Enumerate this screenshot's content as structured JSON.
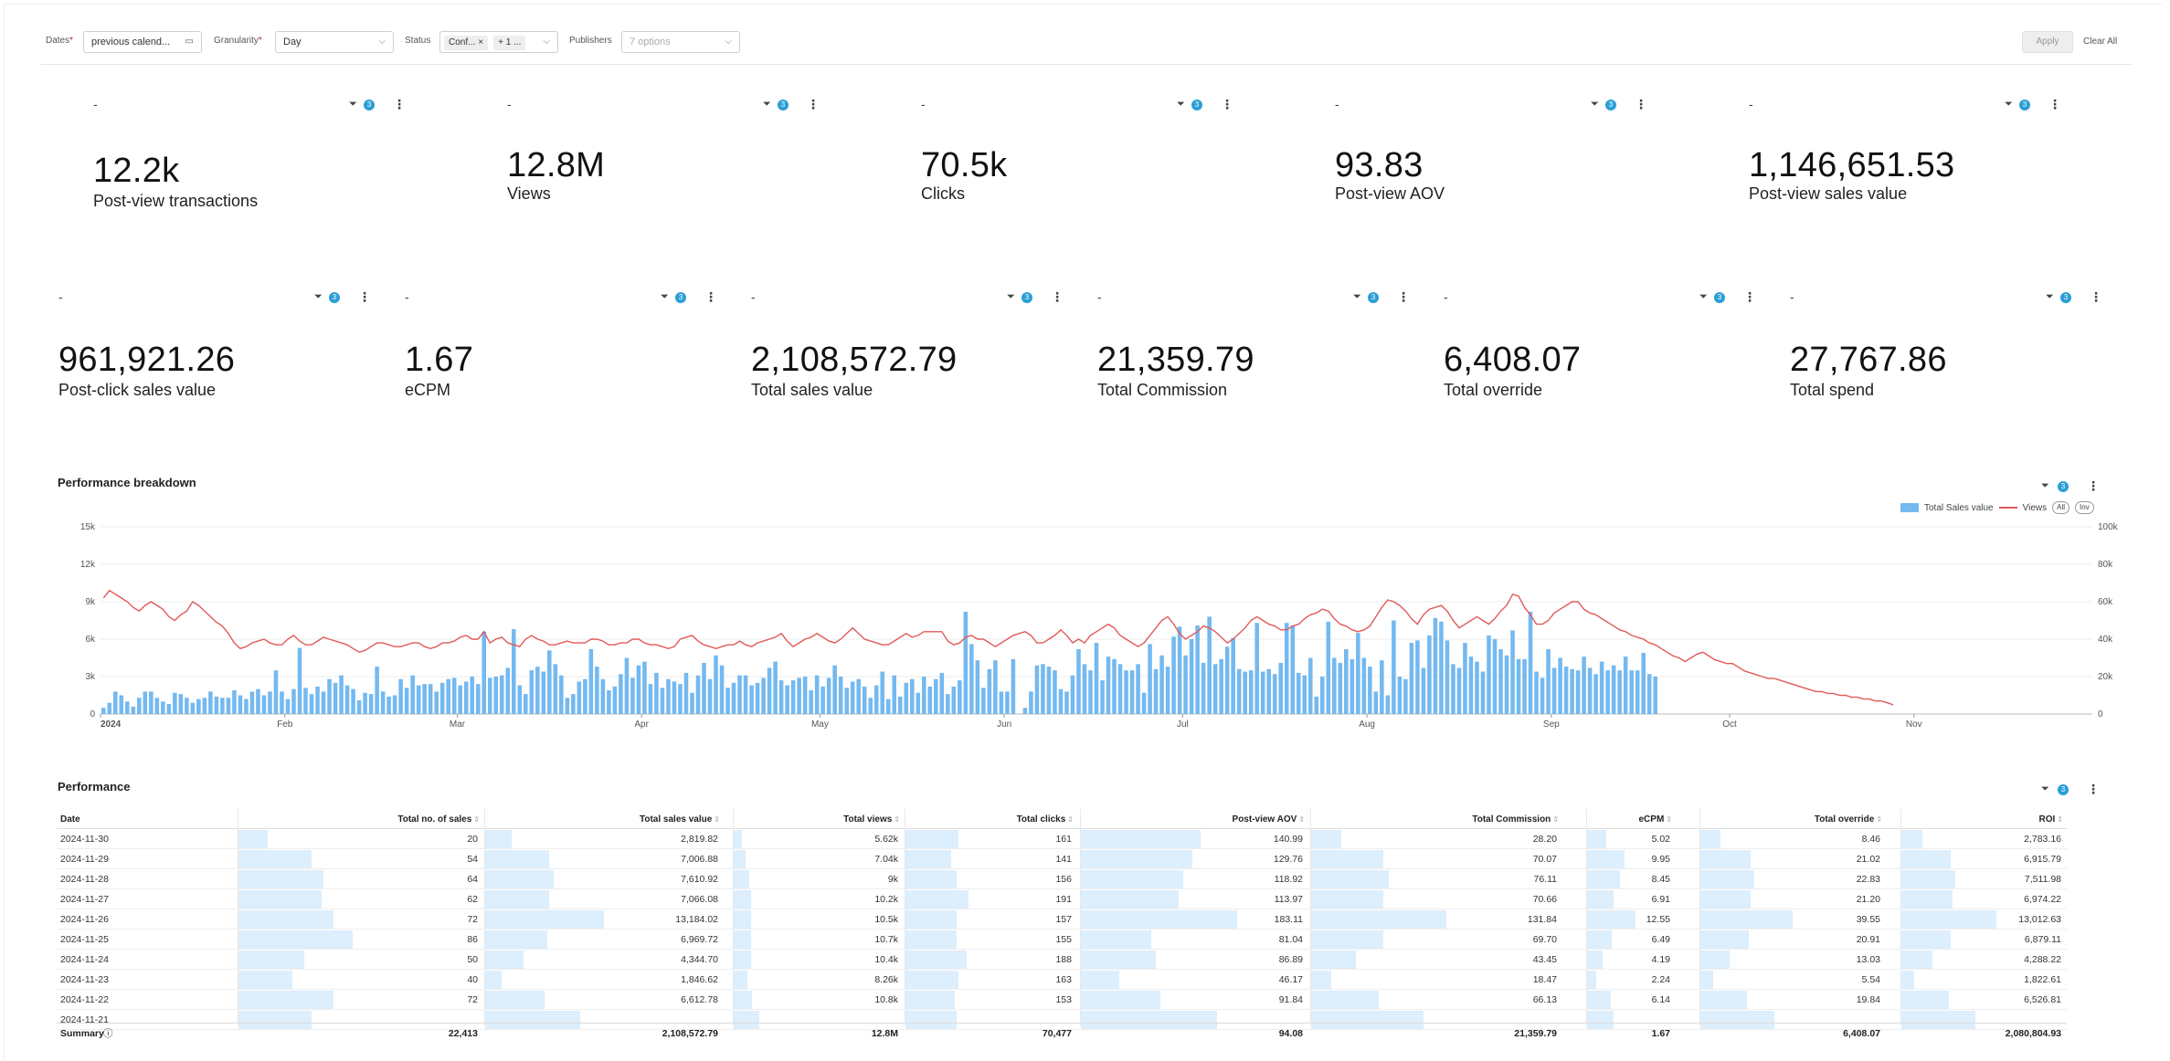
{
  "filters": {
    "dates": {
      "label": "Dates",
      "value": "previous calend..."
    },
    "granularity": {
      "label": "Granularity",
      "value": "Day"
    },
    "status": {
      "label": "Status",
      "chip": "Conf...",
      "more": "+ 1 ..."
    },
    "publishers": {
      "label": "Publishers",
      "placeholder": "7 options"
    },
    "apply": "Apply",
    "clear": "Clear All"
  },
  "kpis_row1": [
    {
      "value": "12.2k",
      "label": "Post-view transactions"
    },
    {
      "value": "12.8M",
      "label": "Views"
    },
    {
      "value": "70.5k",
      "label": "Clicks"
    },
    {
      "value": "93.83",
      "label": "Post-view AOV"
    },
    {
      "value": "1,146,651.53",
      "label": "Post-view sales value"
    }
  ],
  "kpis_row2": [
    {
      "value": "961,921.26",
      "label": "Post-click sales value"
    },
    {
      "value": "1.67",
      "label": "eCPM"
    },
    {
      "value": "2,108,572.79",
      "label": "Total sales value"
    },
    {
      "value": "21,359.79",
      "label": "Total Commission"
    },
    {
      "value": "6,408.07",
      "label": "Total override"
    },
    {
      "value": "27,767.86",
      "label": "Total spend"
    }
  ],
  "kpi_dash": "-",
  "badge_count": "3",
  "more_glyph": "⋮",
  "filter_glyph": "⏷",
  "chart_section": {
    "title": "Performance breakdown"
  },
  "chart_data": {
    "type": "bar",
    "legend": {
      "bars": "Total Sales value",
      "line": "Views",
      "pill_all": "All",
      "pill_inv": "Inv"
    },
    "y_left_ticks": [
      "0",
      "3k",
      "6k",
      "9k",
      "12k",
      "15k"
    ],
    "y_left_lim": [
      0,
      15000
    ],
    "y_right_ticks": [
      "0",
      "20k",
      "40k",
      "60k",
      "80k",
      "100k"
    ],
    "y_right_lim": [
      0,
      100000
    ],
    "x_month_labels": [
      {
        "label": "2024",
        "day": 0
      },
      {
        "label": "Feb",
        "day": 31
      },
      {
        "label": "Mar",
        "day": 60
      },
      {
        "label": "Apr",
        "day": 91
      },
      {
        "label": "May",
        "day": 121
      },
      {
        "label": "Jun",
        "day": 152
      },
      {
        "label": "Jul",
        "day": 182
      },
      {
        "label": "Aug",
        "day": 213
      },
      {
        "label": "Sep",
        "day": 244
      },
      {
        "label": "Oct",
        "day": 274
      },
      {
        "label": "Nov",
        "day": 305
      }
    ],
    "x_start": "2024-01-01",
    "bar_values": [
      500,
      900,
      1800,
      1500,
      1000,
      600,
      1300,
      1800,
      1800,
      1300,
      1000,
      800,
      1700,
      1600,
      1300,
      900,
      1200,
      1300,
      1800,
      1400,
      1300,
      1300,
      1900,
      1500,
      1200,
      1800,
      2000,
      1500,
      1800,
      3500,
      1800,
      1200,
      2000,
      5300,
      2100,
      1600,
      2200,
      1800,
      2800,
      2500,
      3100,
      2300,
      2000,
      1100,
      1700,
      1600,
      3800,
      1800,
      1400,
      1500,
      2800,
      2100,
      3100,
      2300,
      2400,
      2400,
      1800,
      2500,
      2800,
      2900,
      2300,
      2600,
      3000,
      2400,
      6600,
      2900,
      3000,
      3100,
      3700,
      6800,
      2300,
      1600,
      3500,
      3800,
      3400,
      5100,
      4000,
      3100,
      1300,
      1600,
      2600,
      2800,
      5200,
      3800,
      2800,
      1900,
      2200,
      3200,
      4500,
      2900,
      3900,
      4200,
      2400,
      3300,
      2100,
      2800,
      2600,
      2400,
      3300,
      1700,
      3100,
      4100,
      2800,
      4700,
      3900,
      2100,
      2500,
      3100,
      3100,
      2300,
      2500,
      2900,
      3700,
      4200,
      2700,
      2300,
      2700,
      2900,
      3000,
      1900,
      3100,
      2200,
      2900,
      3900,
      3000,
      2100,
      2600,
      2800,
      2200,
      1300,
      2300,
      3400,
      1200,
      3100,
      1400,
      2500,
      2800,
      1700,
      3000,
      2200,
      2800,
      3300,
      1600,
      2200,
      2700,
      8200,
      5600,
      4300,
      2100,
      3600,
      4300,
      1800,
      1800,
      4400,
      0,
      500,
      1800,
      3900,
      4000,
      3800,
      3500,
      2000,
      1800,
      3100,
      5200,
      4000,
      3500,
      5700,
      2700,
      4600,
      4400,
      4000,
      3500,
      3500,
      4000,
      1700,
      5600,
      3600,
      4700,
      3800,
      6200,
      7000,
      4700,
      6000,
      7100,
      4100,
      7800,
      4000,
      4400,
      5400,
      6100,
      3600,
      3400,
      3500,
      7300,
      3400,
      3600,
      3200,
      4100,
      7300,
      7100,
      3300,
      3100,
      4500,
      1400,
      3000,
      7400,
      4500,
      4100,
      5200,
      4400,
      6500,
      4500,
      3800,
      1800,
      4300,
      1500,
      7500,
      3000,
      2800,
      5700,
      5900,
      3700,
      6300,
      7700,
      7400,
      5900,
      4000,
      3700,
      5700,
      4600,
      4200,
      3400,
      6300,
      6000,
      5200,
      4700,
      6700,
      4400,
      4400,
      8200,
      3400,
      2900,
      5200,
      3700,
      4500,
      3800,
      3600,
      3500,
      4600,
      3700,
      3200,
      4200,
      3500,
      3900,
      3500,
      4600,
      3500,
      3500,
      4900,
      3200,
      3000,
      0,
      0,
      0,
      0,
      0,
      0,
      0,
      0,
      0,
      0,
      0,
      0,
      0,
      0,
      0,
      0,
      0,
      0,
      0,
      0,
      0,
      0,
      0,
      0,
      0,
      0,
      0,
      0,
      0,
      0,
      0,
      0,
      0,
      0,
      0,
      0,
      0,
      0,
      0,
      0,
      0,
      0,
      0,
      0
    ],
    "line_values_k": [
      62,
      66,
      64,
      62,
      60,
      57,
      55,
      58,
      60,
      58,
      56,
      52,
      50,
      53,
      55,
      60,
      58,
      55,
      52,
      49,
      47,
      43,
      38,
      35,
      36,
      38,
      39,
      40,
      38,
      37,
      37,
      40,
      42,
      39,
      37,
      37,
      39,
      41,
      40,
      39,
      38,
      37,
      35,
      33,
      34,
      36,
      38,
      38,
      37,
      36,
      36,
      37,
      38,
      38,
      36,
      35,
      36,
      38,
      38,
      39,
      41,
      42,
      40,
      40,
      44,
      38,
      40,
      41,
      38,
      37,
      36,
      40,
      42,
      40,
      39,
      37,
      37,
      38,
      39,
      38,
      38,
      38,
      40,
      40,
      39,
      37,
      37,
      38,
      38,
      40,
      40,
      38,
      37,
      37,
      36,
      35,
      36,
      40,
      41,
      42,
      39,
      37,
      36,
      35,
      36,
      37,
      37,
      39,
      37,
      36,
      38,
      39,
      40,
      41,
      43,
      39,
      36,
      38,
      40,
      41,
      43,
      41,
      39,
      38,
      40,
      43,
      46,
      43,
      40,
      39,
      38,
      37,
      37,
      39,
      41,
      43,
      41,
      42,
      44,
      44,
      44,
      44,
      39,
      37,
      38,
      41,
      42,
      40,
      40,
      38,
      36,
      38,
      40,
      42,
      43,
      44,
      42,
      38,
      38,
      40,
      42,
      45,
      42,
      38,
      40,
      38,
      42,
      44,
      46,
      48,
      46,
      42,
      40,
      38,
      36,
      38,
      42,
      46,
      50,
      52,
      48,
      43,
      40,
      42,
      44,
      47,
      46,
      44,
      41,
      38,
      40,
      43,
      46,
      50,
      52,
      50,
      48,
      47,
      45,
      45,
      47,
      48,
      51,
      53,
      54,
      56,
      55,
      51,
      48,
      47,
      45,
      44,
      45,
      47,
      52,
      57,
      61,
      60,
      58,
      55,
      51,
      48,
      53,
      56,
      57,
      58,
      55,
      50,
      46,
      48,
      50,
      52,
      50,
      48,
      51,
      55,
      58,
      64,
      63,
      57,
      53,
      48,
      48,
      50,
      54,
      56,
      58,
      60,
      60,
      56,
      54,
      53,
      51,
      49,
      47,
      45,
      44,
      42,
      41,
      40,
      38,
      37,
      35,
      33,
      31,
      30,
      28,
      30,
      32,
      33,
      31,
      29,
      28,
      27,
      27,
      25,
      23,
      22,
      21,
      20,
      19,
      19,
      18,
      17,
      16,
      15,
      14,
      13,
      12,
      12,
      11,
      11,
      10,
      10,
      9,
      9,
      8,
      8,
      7,
      7,
      6,
      5
    ]
  },
  "table_section": {
    "title": "Performance"
  },
  "table": {
    "columns": [
      "Date",
      "Total no. of sales",
      "Total sales value",
      "Total views",
      "Total clicks",
      "Post-view AOV",
      "Total Commission",
      "eCPM",
      "Total override",
      "ROI"
    ],
    "rows": [
      {
        "cells": [
          "2024-11-30",
          "20",
          "2,819.82",
          "5.62k",
          "161",
          "140.99",
          "28.20",
          "5.02",
          "8.46",
          "2,783.16"
        ],
        "fill": [
          0.12,
          0.11,
          0.05,
          0.31,
          0.53,
          0.12,
          0.22,
          0.11,
          0.13
        ]
      },
      {
        "cells": [
          "2024-11-29",
          "54",
          "7,006.88",
          "7.04k",
          "141",
          "129.76",
          "70.07",
          "9.95",
          "21.02",
          "6,915.79"
        ],
        "fill": [
          0.3,
          0.27,
          0.07,
          0.27,
          0.49,
          0.29,
          0.43,
          0.27,
          0.3
        ]
      },
      {
        "cells": [
          "2024-11-28",
          "64",
          "7,610.92",
          "9k",
          "156",
          "118.92",
          "76.11",
          "8.45",
          "22.83",
          "7,511.98"
        ],
        "fill": [
          0.35,
          0.29,
          0.09,
          0.3,
          0.45,
          0.31,
          0.37,
          0.29,
          0.33
        ]
      },
      {
        "cells": [
          "2024-11-27",
          "62",
          "7,066.08",
          "10.2k",
          "191",
          "113.97",
          "70.66",
          "6.91",
          "21.20",
          "6,974.22"
        ],
        "fill": [
          0.34,
          0.27,
          0.1,
          0.37,
          0.43,
          0.29,
          0.3,
          0.27,
          0.31
        ]
      },
      {
        "cells": [
          "2024-11-26",
          "72",
          "13,184.02",
          "10.5k",
          "157",
          "183.11",
          "131.84",
          "12.55",
          "39.55",
          "13,012.63"
        ],
        "fill": [
          0.39,
          0.5,
          0.1,
          0.3,
          0.69,
          0.54,
          0.55,
          0.5,
          0.58
        ]
      },
      {
        "cells": [
          "2024-11-25",
          "86",
          "6,969.72",
          "10.7k",
          "155",
          "81.04",
          "69.70",
          "6.49",
          "20.91",
          "6,879.11"
        ],
        "fill": [
          0.47,
          0.26,
          0.1,
          0.3,
          0.31,
          0.29,
          0.28,
          0.26,
          0.3
        ]
      },
      {
        "cells": [
          "2024-11-24",
          "50",
          "4,344.70",
          "10.4k",
          "188",
          "86.89",
          "43.45",
          "4.19",
          "13.03",
          "4,288.22"
        ],
        "fill": [
          0.27,
          0.16,
          0.1,
          0.36,
          0.33,
          0.18,
          0.18,
          0.16,
          0.19
        ]
      },
      {
        "cells": [
          "2024-11-23",
          "40",
          "1,846.62",
          "8.26k",
          "163",
          "46.17",
          "18.47",
          "2.24",
          "5.54",
          "1,822.61"
        ],
        "fill": [
          0.22,
          0.07,
          0.08,
          0.31,
          0.17,
          0.08,
          0.1,
          0.07,
          0.08
        ]
      },
      {
        "cells": [
          "2024-11-22",
          "72",
          "6,612.78",
          "10.8k",
          "153",
          "91.84",
          "66.13",
          "6.14",
          "19.84",
          "6,526.81"
        ],
        "fill": [
          0.39,
          0.25,
          0.11,
          0.29,
          0.35,
          0.27,
          0.27,
          0.25,
          0.29
        ]
      },
      {
        "cells": [
          "2024-11-21",
          "",
          "",
          "",
          "",
          "",
          "",
          "",
          "",
          ""
        ],
        "fill": [
          0.3,
          0.4,
          0.15,
          0.3,
          0.6,
          0.45,
          0.3,
          0.4,
          0.45
        ]
      }
    ],
    "summary": [
      "Summary",
      "22,413",
      "2,108,572.79",
      "12.8M",
      "70,477",
      "94.08",
      "21,359.79",
      "1.67",
      "6,408.07",
      "2,080,804.93"
    ]
  }
}
